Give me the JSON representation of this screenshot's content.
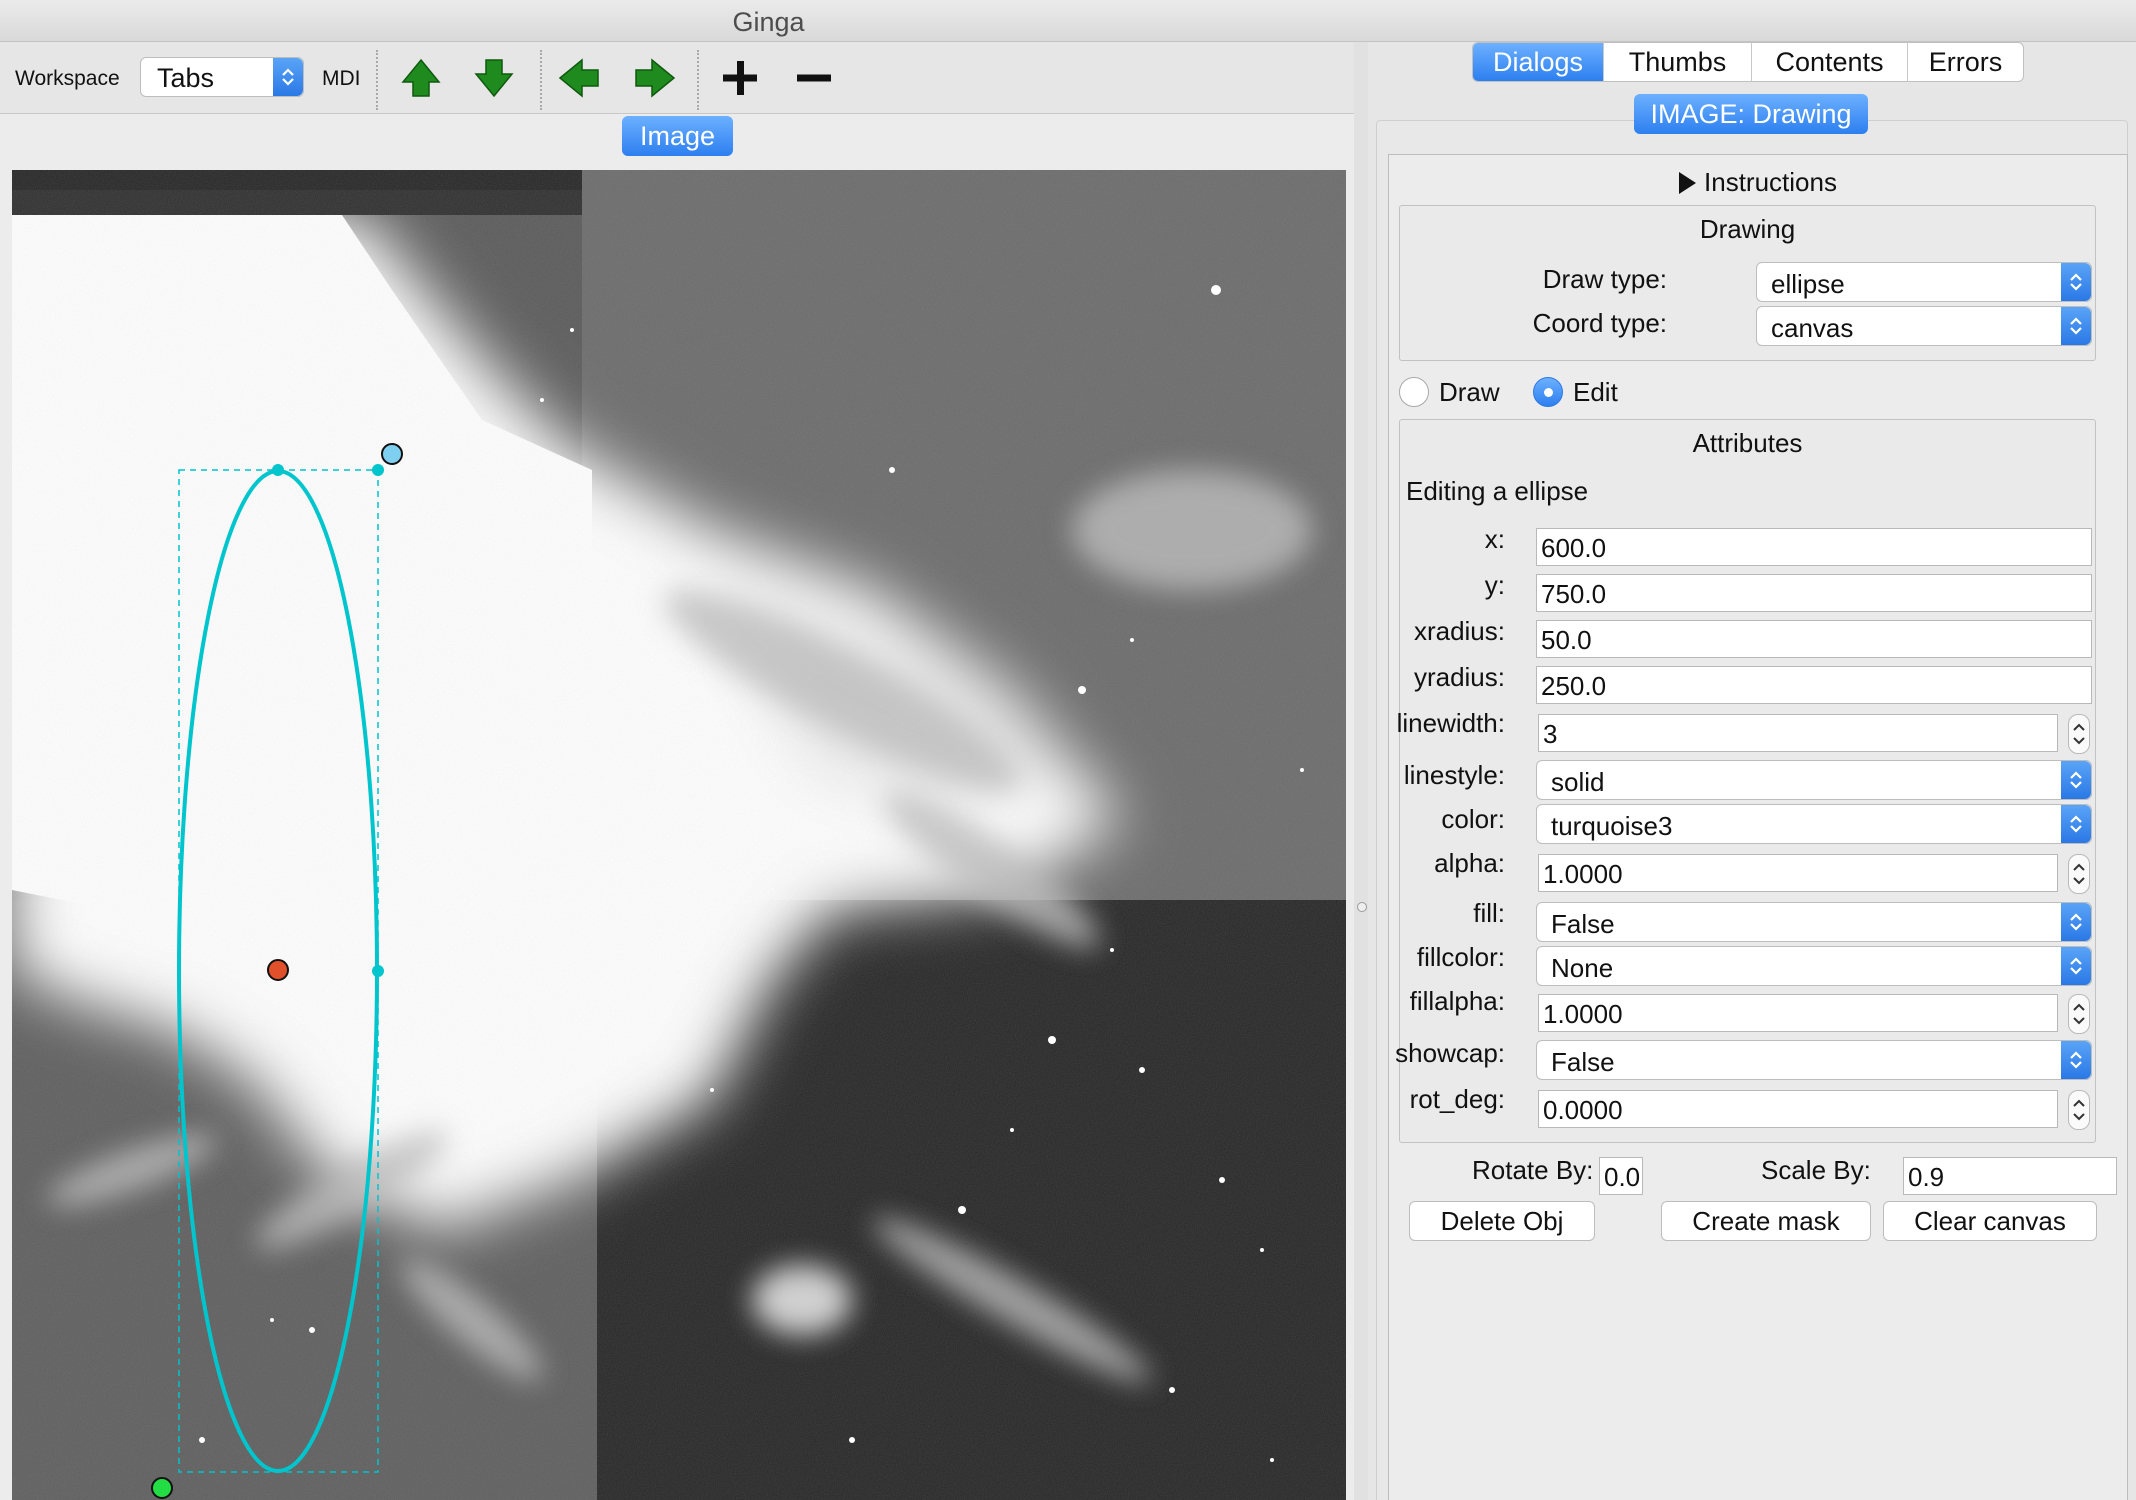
{
  "window": {
    "title": "Ginga"
  },
  "toolbar": {
    "workspace_label": "Workspace",
    "workspace_value": "Tabs",
    "mdi_label": "MDI",
    "buttons": [
      "arrow-up-icon",
      "arrow-down-icon",
      "arrow-left-icon",
      "arrow-right-icon",
      "plus-icon",
      "minus-icon"
    ]
  },
  "image_tab": {
    "label": "Image"
  },
  "right_tabs": [
    {
      "label": "Dialogs",
      "active": true
    },
    {
      "label": "Thumbs",
      "active": false
    },
    {
      "label": "Contents",
      "active": false
    },
    {
      "label": "Errors",
      "active": false
    }
  ],
  "plugin_tab": {
    "label": "IMAGE: Drawing"
  },
  "instructions": {
    "label": "Instructions"
  },
  "drawing": {
    "title": "Drawing",
    "draw_type_label": "Draw type:",
    "draw_type_value": "ellipse",
    "coord_type_label": "Coord type:",
    "coord_type_value": "canvas"
  },
  "mode": {
    "draw_label": "Draw",
    "edit_label": "Edit",
    "selected": "Edit"
  },
  "attributes": {
    "title": "Attributes",
    "subtitle": "Editing a ellipse",
    "x_label": "x:",
    "x_value": "600.0",
    "y_label": "y:",
    "y_value": "750.0",
    "xradius_label": "xradius:",
    "xradius_value": "50.0",
    "yradius_label": "yradius:",
    "yradius_value": "250.0",
    "linewidth_label": "linewidth:",
    "linewidth_value": "3",
    "linestyle_label": "linestyle:",
    "linestyle_value": "solid",
    "color_label": "color:",
    "color_value": "turquoise3",
    "alpha_label": "alpha:",
    "alpha_value": "1.0000",
    "fill_label": "fill:",
    "fill_value": "False",
    "fillcolor_label": "fillcolor:",
    "fillcolor_value": "None",
    "fillalpha_label": "fillalpha:",
    "fillalpha_value": "1.0000",
    "showcap_label": "showcap:",
    "showcap_value": "False",
    "rot_deg_label": "rot_deg:",
    "rot_deg_value": "0.0000"
  },
  "actions": {
    "rotate_label": "Rotate By:",
    "rotate_value": "0.0",
    "scale_label": "Scale By:",
    "scale_value": "0.9",
    "delete_label": "Delete Obj",
    "mask_label": "Create mask",
    "clear_label": "Clear canvas"
  },
  "colors": {
    "accent": "#2d7ff0",
    "ellipse": "#00c5cd",
    "arrow_green": "#1f8b1f",
    "center_handle": "#e0502a",
    "corner_handle": "#7fd0f0",
    "rotate_handle": "#22dd44"
  }
}
